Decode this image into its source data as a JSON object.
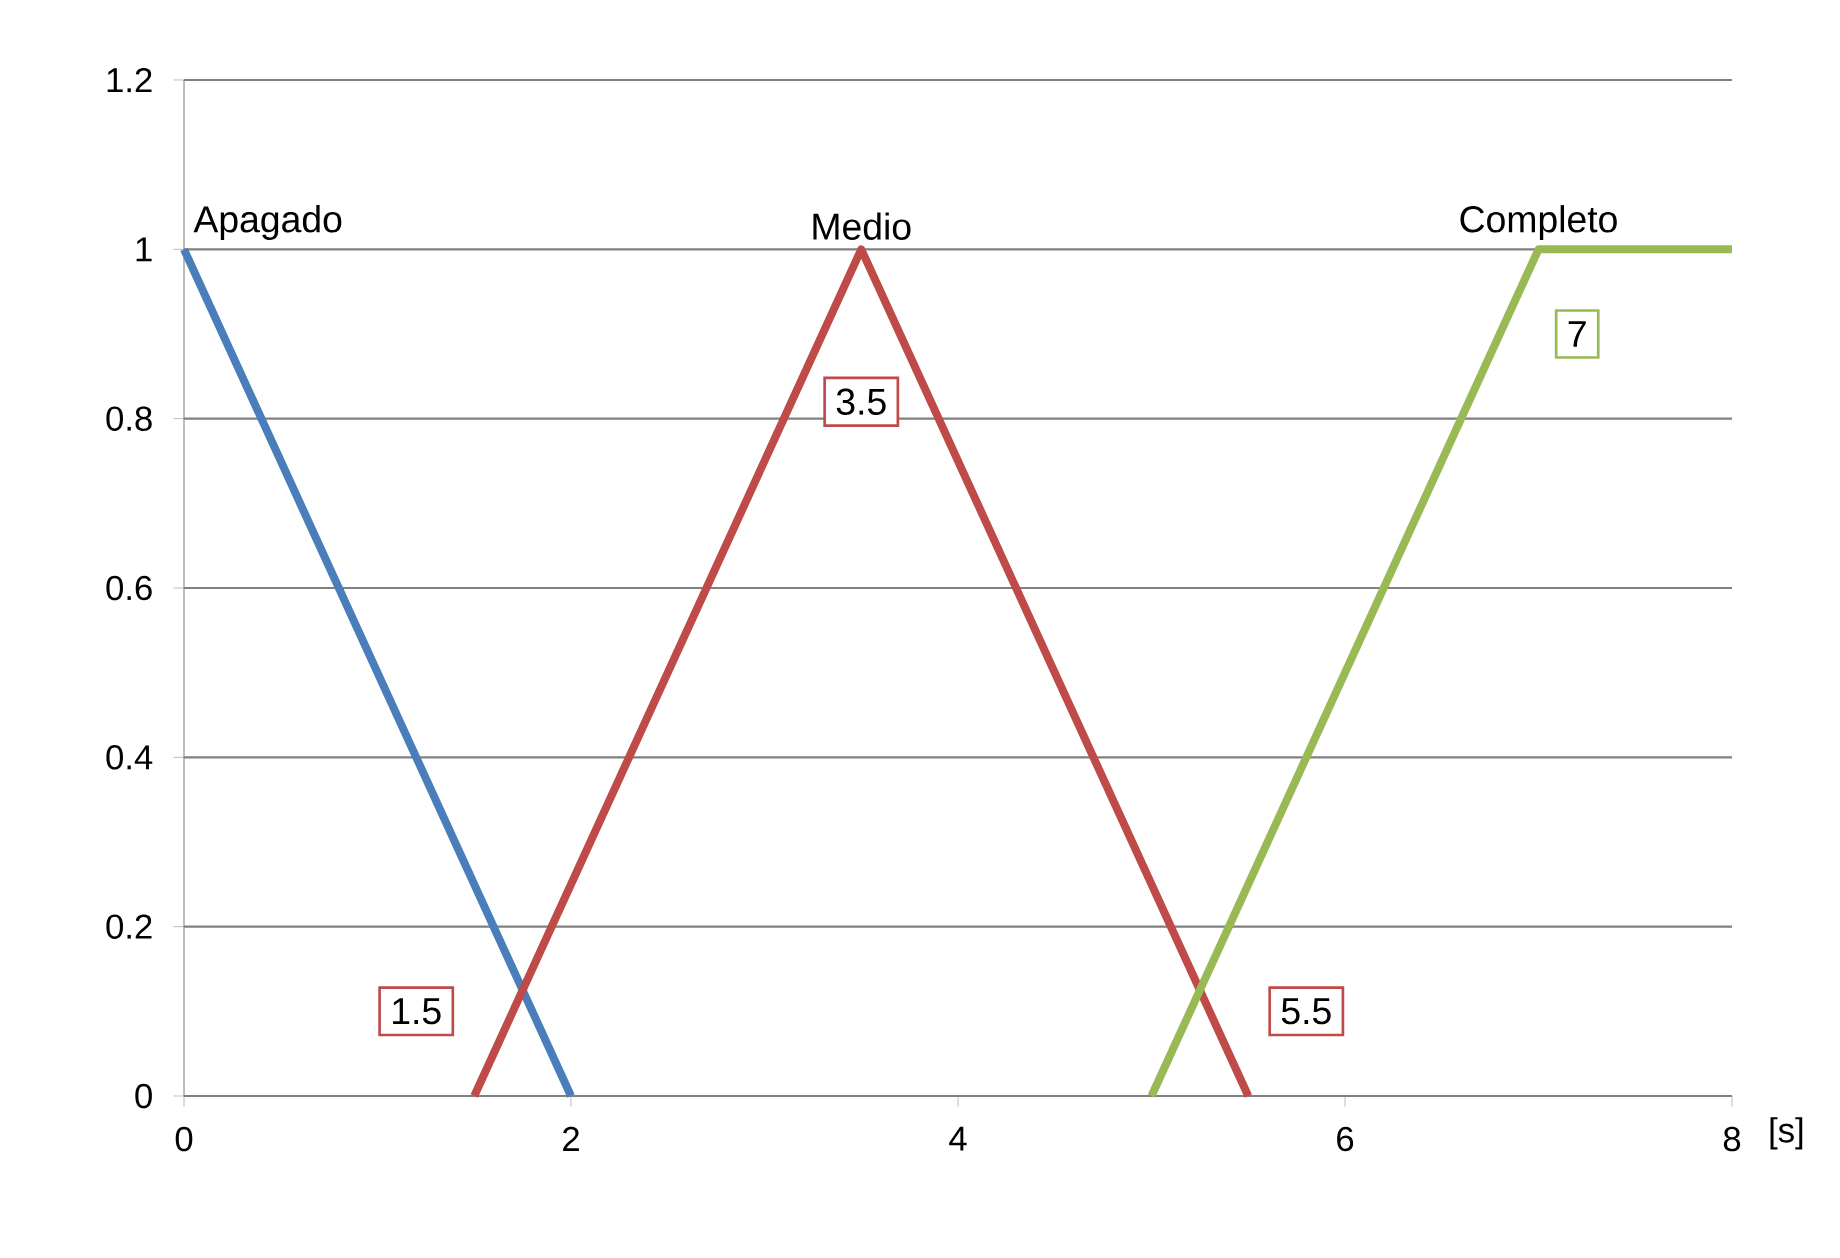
{
  "chart_data": {
    "type": "line",
    "xlabel": "[s]",
    "series": [
      {
        "name": "Apagado",
        "color": "#4a7ebb",
        "x": [
          0,
          2
        ],
        "values": [
          1,
          0
        ]
      },
      {
        "name": "Medio",
        "color": "#be4b48",
        "x": [
          1.5,
          3.5,
          5.5
        ],
        "values": [
          0,
          1,
          0
        ]
      },
      {
        "name": "Completo",
        "color": "#98b954",
        "x": [
          5,
          7,
          8
        ],
        "values": [
          0,
          1,
          1
        ]
      }
    ],
    "annotations": [
      {
        "text": "1.5",
        "x": 1.2,
        "y": 0.1
      },
      {
        "text": "3.5",
        "x": 3.5,
        "y": 0.82
      },
      {
        "text": "5.5",
        "x": 5.8,
        "y": 0.1
      },
      {
        "text": "7",
        "x": 7.2,
        "y": 0.9
      }
    ],
    "xlim": [
      0,
      8
    ],
    "xticks": [
      0,
      2,
      4,
      6,
      8
    ],
    "ylim": [
      0,
      1.2
    ],
    "yticks": [
      0,
      0.2,
      0.4,
      0.6,
      0.8,
      1,
      1.2
    ],
    "grid": "y",
    "marker": "none",
    "line_style": "solid"
  }
}
